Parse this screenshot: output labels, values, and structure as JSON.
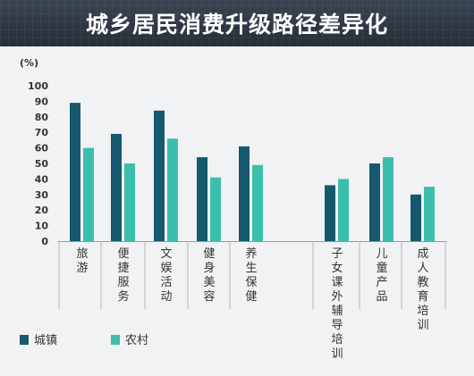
{
  "chart_data": {
    "type": "bar",
    "title": "城乡居民消费升级路径差异化",
    "unit_label": "(%)",
    "ylim": [
      0,
      100
    ],
    "yticks": [
      0,
      10,
      20,
      30,
      40,
      50,
      60,
      70,
      80,
      90,
      100
    ],
    "grid": false,
    "legend_position": "bottom-left",
    "categories": [
      "旅游",
      "便捷服务",
      "文娱活动",
      "健身美容",
      "养生保健",
      "子女课外辅导培训",
      "儿童产品",
      "成人教育培训"
    ],
    "series": [
      {
        "name": "城镇",
        "color": "#16596f",
        "values": [
          89,
          69,
          84,
          54,
          61,
          36,
          50,
          30
        ]
      },
      {
        "name": "农村",
        "color": "#3bbfad",
        "values": [
          60,
          50,
          66,
          41,
          49,
          40,
          54,
          35
        ]
      }
    ]
  }
}
